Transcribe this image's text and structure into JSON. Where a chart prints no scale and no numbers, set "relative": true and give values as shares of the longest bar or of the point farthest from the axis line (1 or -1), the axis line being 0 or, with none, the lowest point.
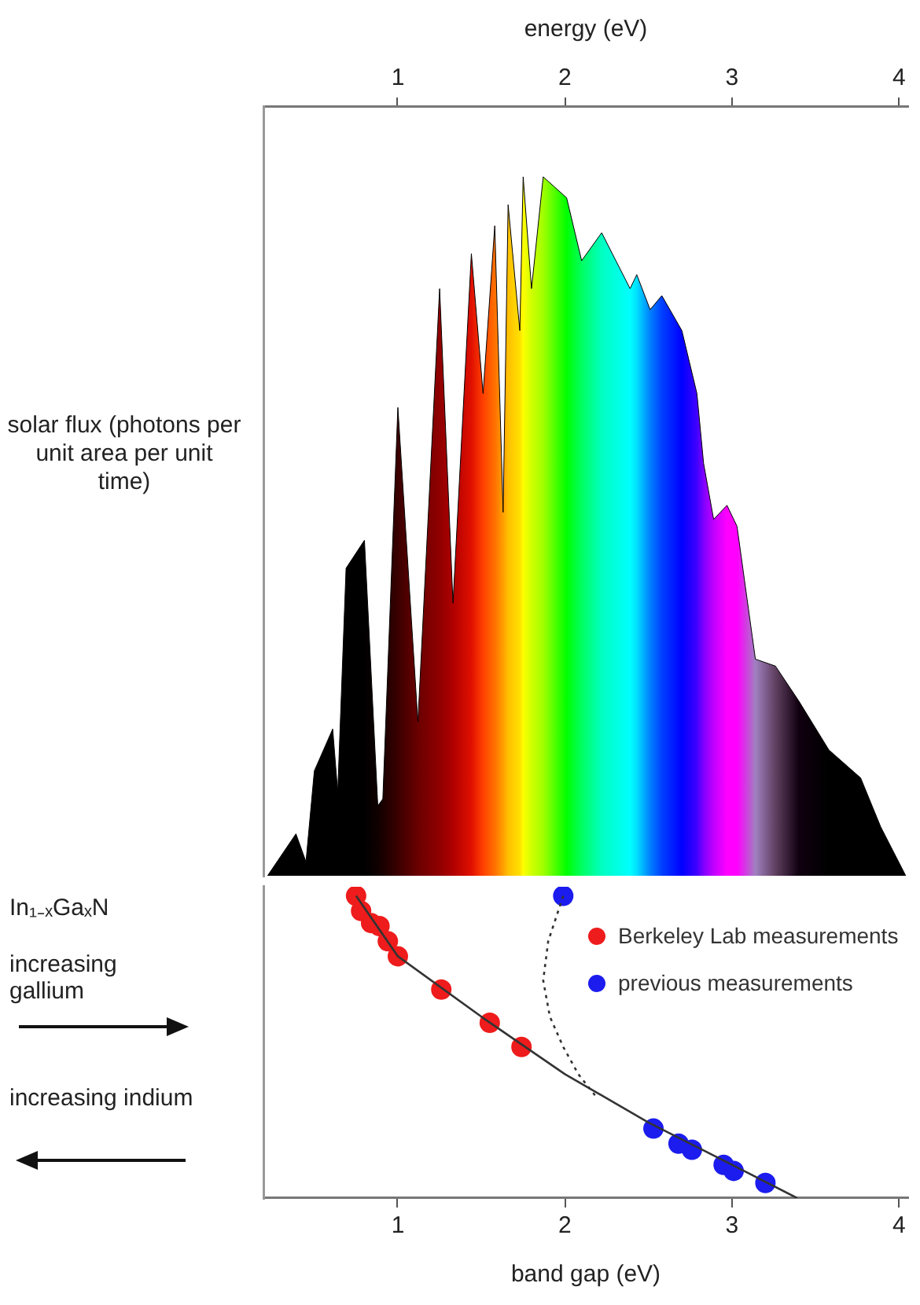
{
  "chart_data": [
    {
      "type": "area",
      "xlabel": "energy (eV)",
      "ylabel": "solar flux (photons per unit area per unit time)",
      "relative": true,
      "xlim": [
        0.2,
        4.05
      ],
      "xticks": [
        1,
        2,
        3,
        4
      ],
      "tick_labels": "x",
      "grid": false,
      "legend": false,
      "x": [
        0.22,
        0.39,
        0.45,
        0.5,
        0.61,
        0.64,
        0.69,
        0.8,
        0.88,
        0.91,
        1.0,
        1.12,
        1.25,
        1.33,
        1.44,
        1.51,
        1.58,
        1.63,
        1.66,
        1.73,
        1.75,
        1.8,
        1.87,
        2.01,
        2.1,
        2.22,
        2.39,
        2.43,
        2.51,
        2.58,
        2.7,
        2.79,
        2.83,
        2.89,
        2.97,
        3.03,
        3.14,
        3.26,
        3.4,
        3.58,
        3.77,
        3.89,
        4.04
      ],
      "values": [
        0,
        0.06,
        0.02,
        0.15,
        0.21,
        0.12,
        0.44,
        0.48,
        0.1,
        0.11,
        0.67,
        0.22,
        0.84,
        0.39,
        0.89,
        0.69,
        0.93,
        0.52,
        0.96,
        0.78,
        1.0,
        0.84,
        1.0,
        0.97,
        0.88,
        0.92,
        0.84,
        0.86,
        0.81,
        0.83,
        0.78,
        0.69,
        0.59,
        0.51,
        0.53,
        0.5,
        0.31,
        0.3,
        0.25,
        0.18,
        0.14,
        0.07,
        0
      ],
      "colors": [
        "#000000",
        "#000000",
        "#000000",
        "#000000",
        "#000000",
        "#000000",
        "#000000",
        "#000000",
        "#100000",
        "#1a0000",
        "#3a0000",
        "#6a0000",
        "#900000",
        "#b00000",
        "#e01000",
        "#ff4000",
        "#ff7000",
        "#ffa000",
        "#ffc000",
        "#ffe000",
        "#ffff00",
        "#d0ff00",
        "#a0ff00",
        "#00ff00",
        "#00ff60",
        "#00ffc0",
        "#00ffff",
        "#00e0ff",
        "#0080ff",
        "#0040ff",
        "#0000ff",
        "#4000ff",
        "#8000ff",
        "#c000ff",
        "#ff00ff",
        "#ff00ff",
        "#a080c0",
        "#604060",
        "#100010",
        "#000000",
        "#000000",
        "#000000",
        "#000000"
      ],
      "color": "#000000"
    },
    {
      "type": "scatter",
      "xlabel": "band gap (eV)",
      "ylabel": "In₁₋ₓGaₓN",
      "relative": true,
      "xlim": [
        0.2,
        4.05
      ],
      "xticks": [
        1,
        2,
        3,
        4
      ],
      "tick_labels": "x",
      "grid": false,
      "legend": "right",
      "marker": "circle",
      "annotations": [
        "increasing gallium",
        "increasing indium"
      ],
      "series": [
        {
          "type": "line",
          "color": "#333333",
          "line_style": "solid",
          "marker": "none",
          "x": [
            0.75,
            1.0,
            1.5,
            2.0,
            2.5,
            3.0,
            3.39
          ],
          "values": [
            1.0,
            0.8,
            0.6,
            0.41,
            0.25,
            0.11,
            0
          ]
        },
        {
          "type": "line",
          "color": "#333333",
          "line_style": "dotted",
          "marker": "none",
          "x": [
            1.99,
            1.9,
            1.87,
            1.91,
            1.99,
            2.08,
            2.18
          ],
          "values": [
            1.0,
            0.85,
            0.72,
            0.6,
            0.5,
            0.41,
            0.34
          ]
        },
        {
          "name": "Berkeley Lab measurements",
          "color": "#ee1c1c",
          "x": [
            0.75,
            0.78,
            0.84,
            0.89,
            0.94,
            1.0,
            1.26,
            1.55,
            1.74
          ],
          "values": [
            1.0,
            0.95,
            0.91,
            0.9,
            0.85,
            0.8,
            0.69,
            0.58,
            0.5
          ]
        },
        {
          "name": "previous measurements",
          "color": "#1c1cee",
          "x": [
            1.99,
            2.53,
            2.68,
            2.76,
            2.95,
            3.01,
            3.2
          ],
          "values": [
            1.0,
            0.23,
            0.18,
            0.16,
            0.11,
            0.09,
            0.05
          ]
        }
      ]
    }
  ]
}
